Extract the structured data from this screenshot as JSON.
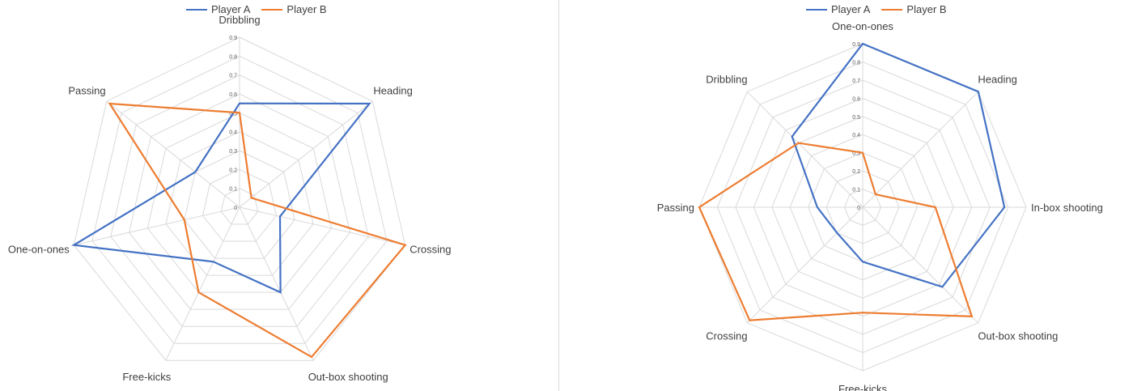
{
  "chart_data": [
    {
      "type": "radar",
      "categories": [
        "Dribbling",
        "Heading",
        "Crossing",
        "Out-box shooting",
        "Free-kicks",
        "One-on-ones",
        "Passing"
      ],
      "radial_ticks": [
        "0",
        "0.1",
        "0.2",
        "0.3",
        "0.4",
        "0.5",
        "0.6",
        "0.7",
        "0.8",
        "0.9"
      ],
      "rmax": 0.9,
      "legend_position": "top",
      "series": [
        {
          "name": "Player A",
          "color": "#4472c4",
          "values": [
            0.55,
            0.88,
            0.22,
            0.5,
            0.32,
            0.9,
            0.3
          ]
        },
        {
          "name": "Player B",
          "color": "#ed7d31",
          "values": [
            0.5,
            0.08,
            0.9,
            0.88,
            0.5,
            0.3,
            0.88
          ]
        }
      ]
    },
    {
      "type": "radar",
      "categories": [
        "One-on-ones",
        "Heading",
        "In-box shooting",
        "Out-box shooting",
        "Free-kicks",
        "Crossing",
        "Passing",
        "Dribbling"
      ],
      "radial_ticks": [
        "0",
        "0.1",
        "0.2",
        "0.3",
        "0.4",
        "0.5",
        "0.6",
        "0.7",
        "0.8",
        "0.9"
      ],
      "rmax": 0.9,
      "legend_position": "top",
      "series": [
        {
          "name": "Player A",
          "color": "#4472c4",
          "values": [
            0.9,
            0.9,
            0.78,
            0.62,
            0.3,
            0.2,
            0.25,
            0.55
          ]
        },
        {
          "name": "Player B",
          "color": "#ed7d31",
          "values": [
            0.3,
            0.1,
            0.4,
            0.85,
            0.58,
            0.88,
            0.9,
            0.5
          ]
        }
      ]
    }
  ]
}
